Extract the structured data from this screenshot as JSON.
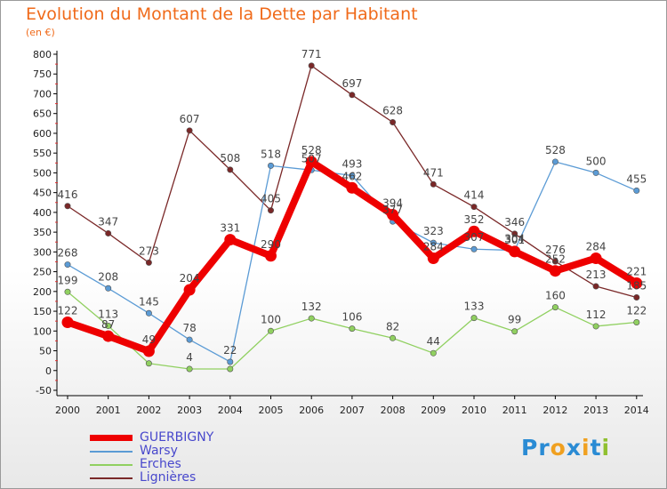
{
  "title": "Evolution du Montant de la Dette par Habitant",
  "subtitle": "(en €)",
  "brand": {
    "letters": [
      "P",
      "r",
      "o",
      "x",
      "i",
      "t",
      "i"
    ],
    "colors": [
      "#2a8bd4",
      "#2a8bd4",
      "#f0a020",
      "#2a8bd4",
      "#f0a020",
      "#2a8bd4",
      "#90c030"
    ]
  },
  "chart_data": {
    "type": "line",
    "x": [
      "2000",
      "2001",
      "2002",
      "2003",
      "2004",
      "2005",
      "2006",
      "2007",
      "2008",
      "2009",
      "2010",
      "2011",
      "2012",
      "2013",
      "2014"
    ],
    "ylim": [
      -50,
      800
    ],
    "yticks": [
      "-50",
      "0",
      "50",
      "100",
      "150",
      "200",
      "250",
      "300",
      "350",
      "400",
      "450",
      "500",
      "550",
      "600",
      "650",
      "700",
      "750",
      "800"
    ],
    "grid": false,
    "legend": "bottom-left",
    "series": [
      {
        "name": "GUERBIGNY",
        "color": "#ee0000",
        "values": [
          122,
          87,
          49,
          204,
          331,
          290,
          528,
          462,
          394,
          284,
          352,
          301,
          252,
          284,
          221
        ],
        "labels": [
          "122",
          "87",
          "49",
          "204",
          "331",
          "290",
          "528",
          "462",
          "394",
          "284",
          "352",
          "301",
          "252",
          "284",
          "221"
        ]
      },
      {
        "name": "Warsy",
        "color": "#5b9bd5",
        "values": [
          268,
          208,
          145,
          78,
          22,
          518,
          507,
          493,
          377,
          323,
          307,
          304,
          528,
          500,
          455
        ],
        "labels": [
          "268",
          "208",
          "145",
          "78",
          "22",
          "518",
          "507",
          "493",
          "377",
          "323",
          "307",
          "304",
          "528",
          "500",
          "455"
        ]
      },
      {
        "name": "Erches",
        "color": "#90d060",
        "values": [
          199,
          113,
          18,
          4,
          4,
          100,
          132,
          106,
          82,
          44,
          133,
          99,
          160,
          112,
          122
        ],
        "labels": [
          "199",
          "113",
          "",
          "4",
          "",
          "100",
          "132",
          "106",
          "82",
          "44",
          "133",
          "99",
          "160",
          "112",
          "122"
        ]
      },
      {
        "name": "Lignières",
        "color": "#7a2828",
        "values": [
          416,
          347,
          273,
          607,
          508,
          405,
          771,
          697,
          628,
          471,
          414,
          346,
          276,
          213,
          185
        ],
        "labels": [
          "416",
          "347",
          "273",
          "607",
          "508",
          "405",
          "771",
          "697",
          "628",
          "471",
          "414",
          "346",
          "276",
          "213",
          "185"
        ]
      }
    ]
  }
}
